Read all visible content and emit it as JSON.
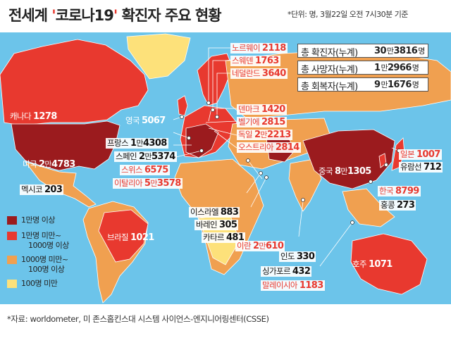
{
  "title": {
    "prefix": "전세계 ",
    "q1": "'",
    "main": "코로나19",
    "q2": "'",
    "suffix": " 확진자 주요 현황"
  },
  "unit_note": "*단위: 명, 3월22일 오전 7시30분 기준",
  "totals": [
    {
      "label": "총 확진자(누계)",
      "man": "30",
      "rest": "3816"
    },
    {
      "label": "총 사망자(누계)",
      "man": "1",
      "rest": "2966"
    },
    {
      "label": "총 회복자(누계)",
      "man": "9",
      "rest": "1676"
    }
  ],
  "unit_man": "만",
  "unit_people": "명",
  "countries": {
    "norway": {
      "name": "노르웨이",
      "value": "2118"
    },
    "sweden": {
      "name": "스웨덴",
      "value": "1763"
    },
    "netherlands": {
      "name": "네덜란드",
      "value": "3640"
    },
    "canada": {
      "name": "캐나다",
      "value": "1278"
    },
    "uk": {
      "name": "영국",
      "value": "5067"
    },
    "denmark": {
      "name": "덴마크",
      "value": "1420"
    },
    "belgium": {
      "name": "벨기에",
      "value": "2815"
    },
    "germany": {
      "name": "독일",
      "man": "2",
      "rest": "2213"
    },
    "austria": {
      "name": "오스트리아",
      "value": "2814"
    },
    "france": {
      "name": "프랑스",
      "man": "1",
      "rest": "4308"
    },
    "spain": {
      "name": "스페인",
      "man": "2",
      "rest": "5374"
    },
    "switzerland": {
      "name": "스위스",
      "value": "6575"
    },
    "italy": {
      "name": "이탈리아",
      "man": "5",
      "rest": "3578"
    },
    "usa": {
      "name": "미국",
      "man": "2",
      "rest": "4783"
    },
    "mexico": {
      "name": "멕시코",
      "value": "203"
    },
    "japan": {
      "name": "일본",
      "value": "1007"
    },
    "cruise": {
      "name": "유람선",
      "value": "712"
    },
    "china": {
      "name": "중국",
      "man": "8",
      "rest": "1305"
    },
    "korea": {
      "name": "한국",
      "value": "8799"
    },
    "hongkong": {
      "name": "홍콩",
      "value": "273"
    },
    "israel": {
      "name": "이스라엘",
      "value": "883"
    },
    "bahrain": {
      "name": "바레인",
      "value": "305"
    },
    "qatar": {
      "name": "카타르",
      "value": "481"
    },
    "iran": {
      "name": "이란",
      "man": "2",
      "rest": "610"
    },
    "brazil": {
      "name": "브라질",
      "value": "1021"
    },
    "india": {
      "name": "인도",
      "value": "330"
    },
    "singapore": {
      "name": "싱가포르",
      "value": "432"
    },
    "malaysia": {
      "name": "말레이시아",
      "value": "1183"
    },
    "australia": {
      "name": "호주",
      "value": "1071"
    }
  },
  "legend": [
    {
      "label": "1만명 이상",
      "color": "#9b1b1e"
    },
    {
      "label": "1만명 미만~",
      "label2": "1000명 이상",
      "color": "#e8392f"
    },
    {
      "label": "1000명 미만~",
      "label2": "100명 이상",
      "color": "#f0a050"
    },
    {
      "label": "100명 미만",
      "color": "#fde17a"
    }
  ],
  "colors": {
    "ocean": "#6cc4ea",
    "tier1": "#9b1b1e",
    "tier2": "#e8392f",
    "tier3": "#f0a050",
    "tier4": "#fde17a",
    "highlight": "#e8392f"
  },
  "source": "*자료: worldometer, 미 존스홉킨스대 시스템 사이언스-엔지니어링센터(CSSE)"
}
